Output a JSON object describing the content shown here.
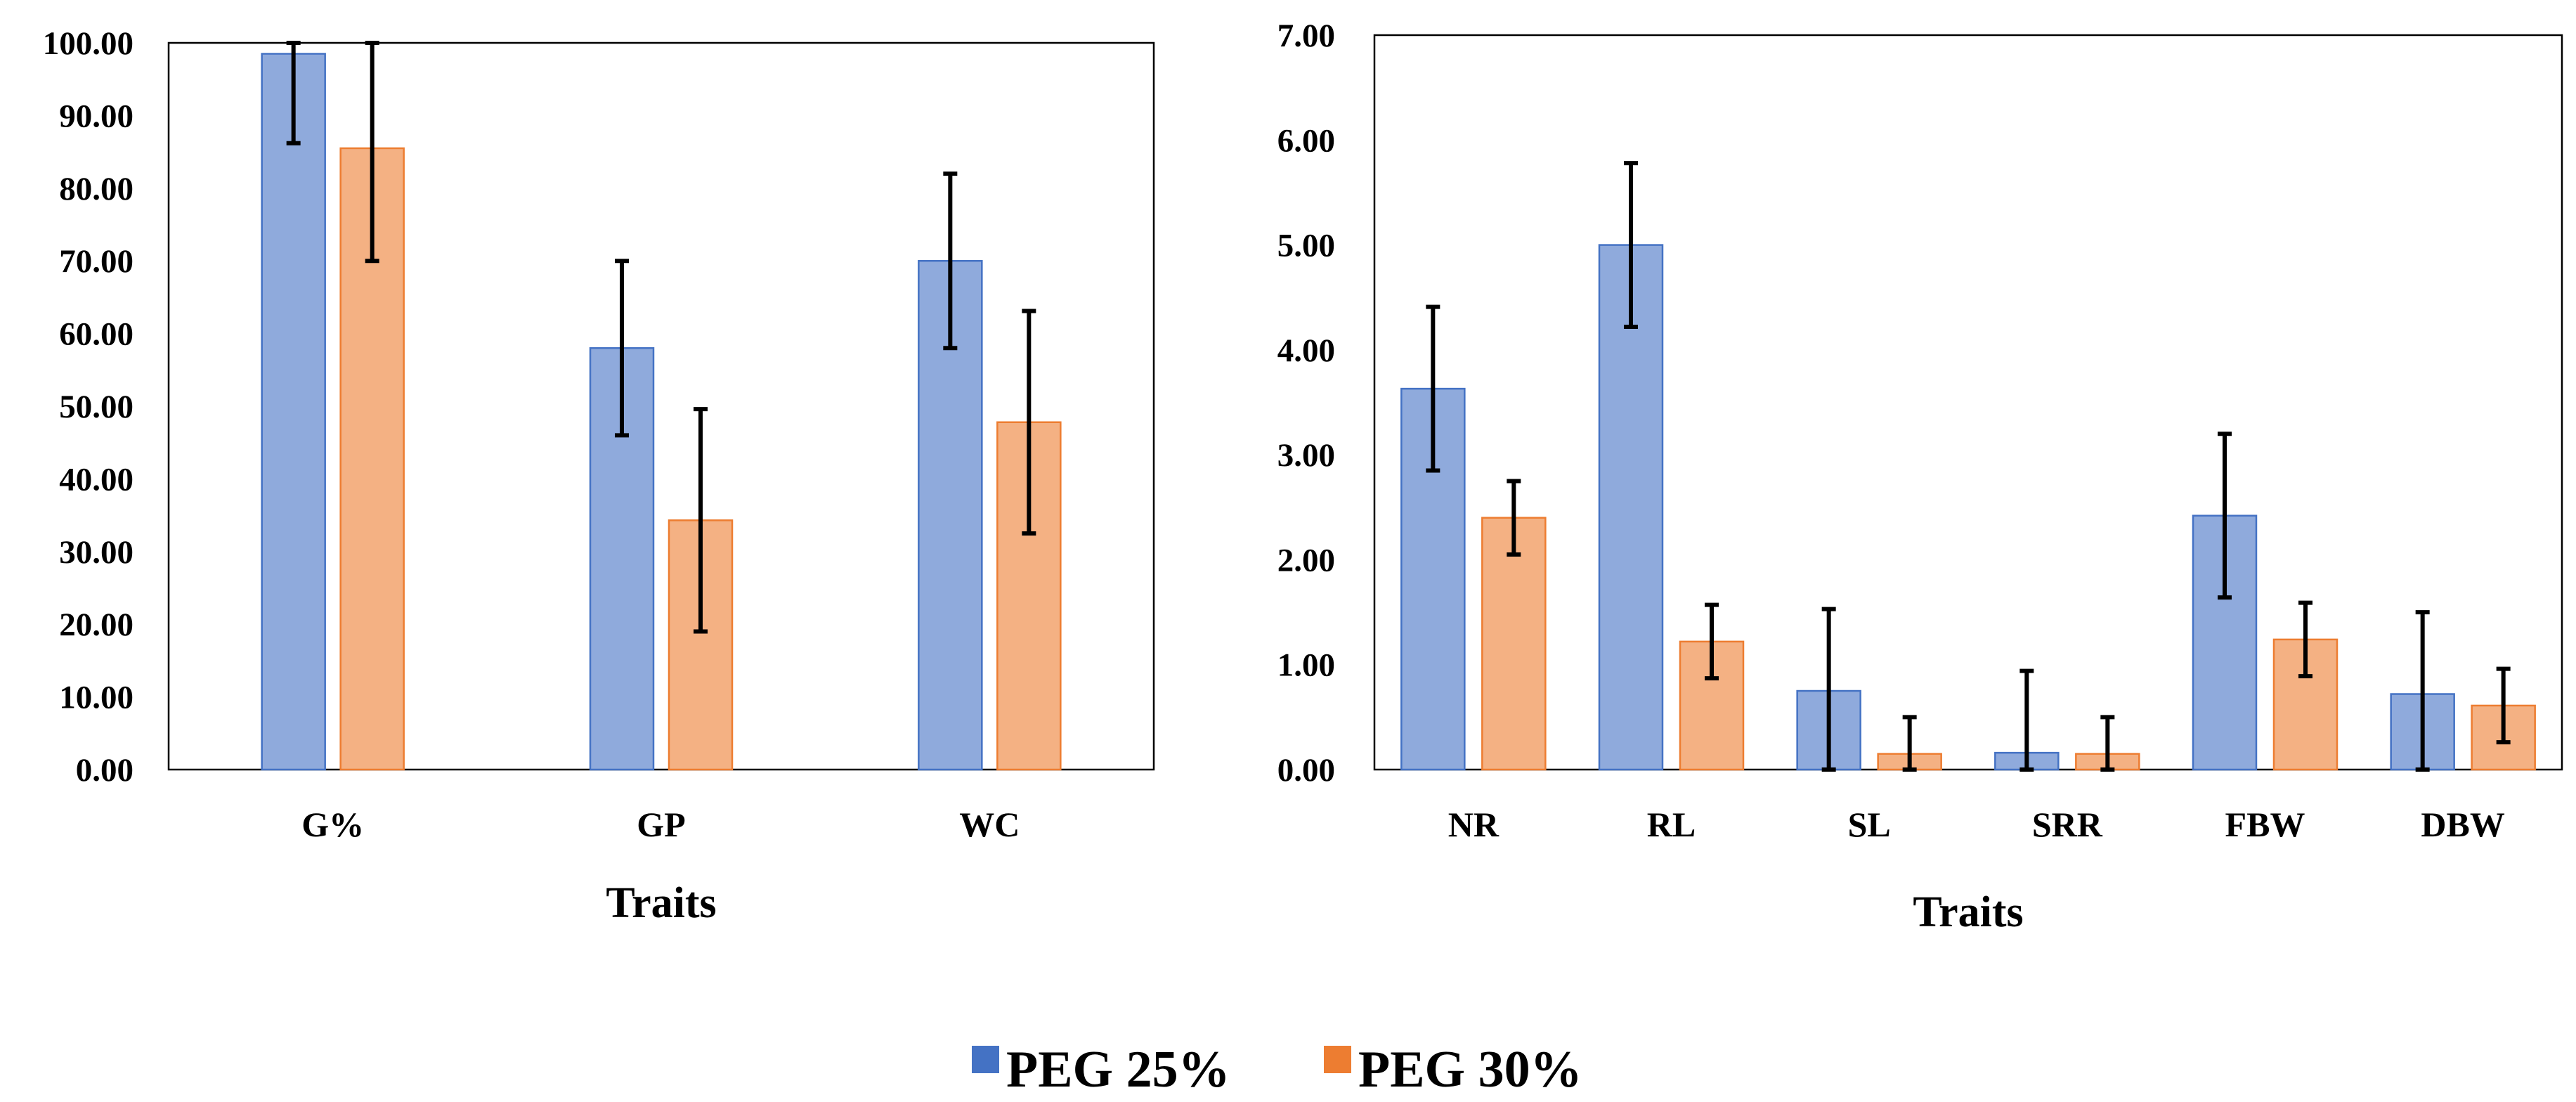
{
  "colors": {
    "peg25_fill": "#8faadc",
    "peg25_stroke": "#4472c4",
    "peg30_fill": "#f4b183",
    "peg30_stroke": "#ed7d31",
    "legend_peg25": "#4472c4",
    "legend_peg30": "#ed7d31",
    "error_bar": "#000000"
  },
  "legend": {
    "position": "bottom-center",
    "items": [
      {
        "label": "PEG 25%"
      },
      {
        "label": "PEG 30%"
      }
    ]
  },
  "chart_data": [
    {
      "type": "bar",
      "xlabel": "Traits",
      "ylabel": "",
      "ylim": [
        0,
        100
      ],
      "ystep": 10,
      "tick_decimals": 2,
      "grid": false,
      "categories": [
        "G%",
        "GP",
        "WC"
      ],
      "series": [
        {
          "name": "PEG 25%",
          "values": [
            98.5,
            58.0,
            70.0
          ],
          "errors": [
            12.3,
            12.0,
            12.0
          ]
        },
        {
          "name": "PEG 30%",
          "values": [
            85.5,
            34.3,
            47.8
          ],
          "errors": [
            15.5,
            15.3,
            15.3
          ]
        }
      ]
    },
    {
      "type": "bar",
      "xlabel": "Traits",
      "ylabel": "",
      "ylim": [
        0,
        7
      ],
      "ystep": 1,
      "tick_decimals": 2,
      "grid": false,
      "categories": [
        "NR",
        "RL",
        "SL",
        "SRR",
        "FBW",
        "DBW"
      ],
      "series": [
        {
          "name": "PEG 25%",
          "values": [
            3.63,
            5.0,
            0.75,
            0.16,
            2.42,
            0.72
          ],
          "errors": [
            0.78,
            0.78,
            0.78,
            0.78,
            0.78,
            0.78
          ]
        },
        {
          "name": "PEG 30%",
          "values": [
            2.4,
            1.22,
            0.15,
            0.15,
            1.24,
            0.61
          ],
          "errors": [
            0.35,
            0.35,
            0.35,
            0.35,
            0.35,
            0.35
          ]
        }
      ]
    }
  ]
}
